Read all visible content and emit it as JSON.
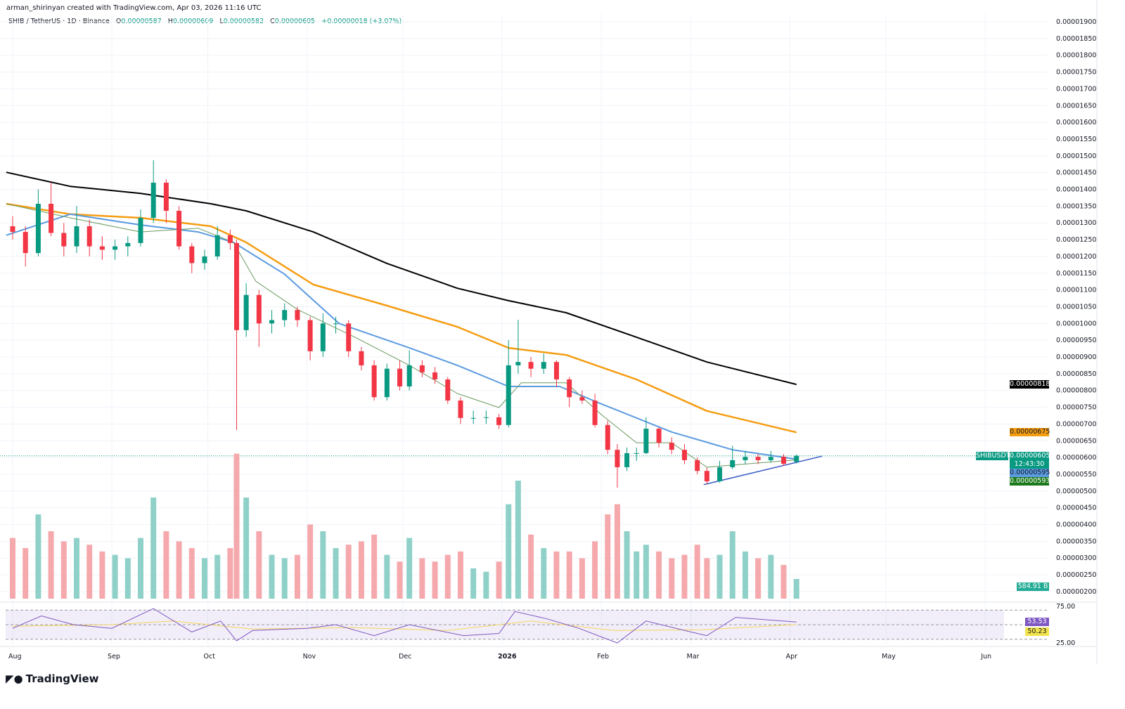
{
  "credit": "arman_shirinyan created with TradingView.com, Apr 03, 2026 11:16 UTC",
  "legend": {
    "symbol": "SHIB / TetherUS · 1D · Binance",
    "o_label": "O",
    "o": "0.00000587",
    "h_label": "H",
    "h": "0.00000609",
    "l_label": "L",
    "l": "0.00000582",
    "c_label": "C",
    "c": "0.00000605",
    "change": "+0.00000018 (+3.07%)"
  },
  "colors": {
    "up": "#089981",
    "down": "#f23645",
    "vol_up": "#8fd1c8",
    "vol_down": "#f5a9ad",
    "ma200": "#000000",
    "ma100": "#f59d12",
    "ma50": "#5b9be0",
    "ma20": "#6a9a5e",
    "trendline": "#3a5bc7",
    "rsi": "#7e57c2",
    "rsi_ma": "#f2d45c"
  },
  "tags": {
    "ma200": "0.00000818",
    "ma100": "0.00000675",
    "symbol": "SHIBUSDT",
    "last": "0.00000605",
    "countdown": "12:43:30",
    "ma50": "0.00000595",
    "ma20": "0.00000593",
    "volume": "584.91 B",
    "rsi": "53.53",
    "rsi_ma": "50.23"
  },
  "logo": "TradingView",
  "chart_data": {
    "type": "candlestick",
    "price_unit": "1e-6 USDT",
    "y_ticks": [
      "0.00001900",
      "0.00001850",
      "0.00001800",
      "0.00001750",
      "0.00001700",
      "0.00001650",
      "0.00001600",
      "0.00001550",
      "0.00001500",
      "0.00001450",
      "0.00001400",
      "0.00001350",
      "0.00001300",
      "0.00001250",
      "0.00001200",
      "0.00001150",
      "0.00001100",
      "0.00001050",
      "0.00001000",
      "0.00000950",
      "0.00000900",
      "0.00000850",
      "0.00000800",
      "0.00000750",
      "0.00000700",
      "0.00000650",
      "0.00000600",
      "0.00000550",
      "0.00000500",
      "0.00000450",
      "0.00000400",
      "0.00000350",
      "0.00000300",
      "0.00000250",
      "0.00000200"
    ],
    "ylim": [
      2.0,
      19.0
    ],
    "x_ticks": [
      {
        "label": "Aug",
        "date": "2025-08-01"
      },
      {
        "label": "Sep",
        "date": "2025-09-01"
      },
      {
        "label": "Oct",
        "date": "2025-10-01"
      },
      {
        "label": "Nov",
        "date": "2025-11-01"
      },
      {
        "label": "Dec",
        "date": "2025-12-01"
      },
      {
        "label": "2026",
        "date": "2026-01-01"
      },
      {
        "label": "Feb",
        "date": "2026-02-01"
      },
      {
        "label": "Mar",
        "date": "2026-03-01"
      },
      {
        "label": "Apr",
        "date": "2026-04-01"
      },
      {
        "label": "May",
        "date": "2026-05-01"
      },
      {
        "label": "Jun",
        "date": "2026-06-01"
      }
    ],
    "candles_columns": [
      "date",
      "open",
      "high",
      "low",
      "close",
      "volume_B"
    ],
    "candles": [
      [
        "2025-08-01",
        12.9,
        13.2,
        12.5,
        12.73,
        1800
      ],
      [
        "2025-08-05",
        12.73,
        12.9,
        11.7,
        12.1,
        1500
      ],
      [
        "2025-08-09",
        12.1,
        14.0,
        12.0,
        13.57,
        2500
      ],
      [
        "2025-08-13",
        13.57,
        14.2,
        12.6,
        12.7,
        2000
      ],
      [
        "2025-08-17",
        12.7,
        13.0,
        12.0,
        12.3,
        1700
      ],
      [
        "2025-08-21",
        12.3,
        13.5,
        12.1,
        12.9,
        1800
      ],
      [
        "2025-08-25",
        12.9,
        13.1,
        12.0,
        12.3,
        1600
      ],
      [
        "2025-08-29",
        12.3,
        12.6,
        11.9,
        12.2,
        1400
      ],
      [
        "2025-09-02",
        12.2,
        12.5,
        11.9,
        12.3,
        1300
      ],
      [
        "2025-09-06",
        12.3,
        12.6,
        12.0,
        12.4,
        1200
      ],
      [
        "2025-09-10",
        12.4,
        13.4,
        12.3,
        13.15,
        1800
      ],
      [
        "2025-09-14",
        13.15,
        14.87,
        13.0,
        14.2,
        3000
      ],
      [
        "2025-09-18",
        14.2,
        14.3,
        13.0,
        13.36,
        2000
      ],
      [
        "2025-09-22",
        13.36,
        13.5,
        12.2,
        12.3,
        1700
      ],
      [
        "2025-09-26",
        12.3,
        12.4,
        11.5,
        11.8,
        1500
      ],
      [
        "2025-09-30",
        11.8,
        12.2,
        11.6,
        12.0,
        1200
      ],
      [
        "2025-10-04",
        12.0,
        12.9,
        11.9,
        12.63,
        1300
      ],
      [
        "2025-10-08",
        12.63,
        12.8,
        12.2,
        12.4,
        1500
      ],
      [
        "2025-10-10",
        12.4,
        12.5,
        6.82,
        9.8,
        4300
      ],
      [
        "2025-10-13",
        9.8,
        11.2,
        9.6,
        10.85,
        3000
      ],
      [
        "2025-10-17",
        10.85,
        11.0,
        9.3,
        10.0,
        2000
      ],
      [
        "2025-10-21",
        10.0,
        10.4,
        9.7,
        10.1,
        1300
      ],
      [
        "2025-10-25",
        10.1,
        10.6,
        9.9,
        10.4,
        1200
      ],
      [
        "2025-10-29",
        10.4,
        10.5,
        9.9,
        10.1,
        1300
      ],
      [
        "2025-11-02",
        10.1,
        10.2,
        8.9,
        9.17,
        2200
      ],
      [
        "2025-11-06",
        9.17,
        10.3,
        9.0,
        10.0,
        2000
      ],
      [
        "2025-11-10",
        10.0,
        10.2,
        9.7,
        10.0,
        1500
      ],
      [
        "2025-11-14",
        10.0,
        10.1,
        9.0,
        9.17,
        1600
      ],
      [
        "2025-11-18",
        9.17,
        9.3,
        8.6,
        8.75,
        1700
      ],
      [
        "2025-11-22",
        8.75,
        8.9,
        7.7,
        7.8,
        1900
      ],
      [
        "2025-11-26",
        7.8,
        8.8,
        7.7,
        8.65,
        1300
      ],
      [
        "2025-11-30",
        8.65,
        8.9,
        8.0,
        8.12,
        1100
      ],
      [
        "2025-12-03",
        8.12,
        9.2,
        8.0,
        8.75,
        1800
      ],
      [
        "2025-12-07",
        8.75,
        8.9,
        8.4,
        8.54,
        1200
      ],
      [
        "2025-12-11",
        8.54,
        8.7,
        8.2,
        8.33,
        1100
      ],
      [
        "2025-12-15",
        8.33,
        8.4,
        7.6,
        7.7,
        1300
      ],
      [
        "2025-12-19",
        7.7,
        7.8,
        7.0,
        7.18,
        1400
      ],
      [
        "2025-12-23",
        7.18,
        7.4,
        7.0,
        7.18,
        900
      ],
      [
        "2025-12-27",
        7.18,
        7.4,
        7.0,
        7.2,
        800
      ],
      [
        "2025-12-31",
        7.2,
        7.3,
        6.85,
        6.97,
        1100
      ],
      [
        "2026-01-03",
        6.97,
        9.5,
        6.9,
        8.75,
        2800
      ],
      [
        "2026-01-06",
        8.75,
        10.11,
        8.5,
        8.85,
        3500
      ],
      [
        "2026-01-10",
        8.85,
        9.0,
        8.4,
        8.65,
        1900
      ],
      [
        "2026-01-14",
        8.65,
        9.1,
        8.5,
        8.85,
        1500
      ],
      [
        "2026-01-18",
        8.85,
        8.9,
        8.1,
        8.33,
        1400
      ],
      [
        "2026-01-22",
        8.33,
        8.4,
        7.5,
        7.8,
        1400
      ],
      [
        "2026-01-26",
        7.8,
        8.0,
        7.6,
        7.7,
        1200
      ],
      [
        "2026-01-30",
        7.7,
        7.9,
        6.9,
        6.97,
        1700
      ],
      [
        "2026-02-03",
        6.97,
        7.1,
        6.1,
        6.23,
        2500
      ],
      [
        "2026-02-06",
        6.23,
        6.4,
        5.1,
        5.71,
        2800
      ],
      [
        "2026-02-09",
        5.71,
        6.3,
        5.6,
        6.13,
        2000
      ],
      [
        "2026-02-12",
        6.13,
        6.3,
        5.9,
        6.13,
        1400
      ],
      [
        "2026-02-15",
        6.13,
        7.2,
        6.1,
        6.86,
        1600
      ],
      [
        "2026-02-19",
        6.86,
        6.9,
        6.3,
        6.44,
        1400
      ],
      [
        "2026-02-23",
        6.44,
        6.6,
        6.1,
        6.23,
        1200
      ],
      [
        "2026-02-27",
        6.23,
        6.4,
        5.8,
        5.92,
        1300
      ],
      [
        "2026-03-03",
        5.92,
        6.0,
        5.5,
        5.6,
        1600
      ],
      [
        "2026-03-06",
        5.6,
        5.7,
        5.2,
        5.29,
        1200
      ],
      [
        "2026-03-10",
        5.29,
        5.9,
        5.25,
        5.71,
        1300
      ],
      [
        "2026-03-14",
        5.71,
        6.35,
        5.65,
        5.92,
        2000
      ],
      [
        "2026-03-18",
        5.92,
        6.2,
        5.8,
        6.02,
        1400
      ],
      [
        "2026-03-22",
        6.02,
        6.1,
        5.8,
        5.92,
        1200
      ],
      [
        "2026-03-26",
        5.92,
        6.2,
        5.85,
        6.02,
        1300
      ],
      [
        "2026-03-30",
        6.02,
        6.1,
        5.75,
        5.81,
        1000
      ],
      [
        "2026-04-03",
        5.87,
        6.09,
        5.82,
        6.05,
        584.91
      ]
    ],
    "moving_averages": [
      {
        "key": "ma200",
        "points": [
          [
            "2025-07-30",
            14.51
          ],
          [
            "2025-08-19",
            14.09
          ],
          [
            "2025-09-10",
            13.88
          ],
          [
            "2025-10-02",
            13.57
          ],
          [
            "2025-10-13",
            13.36
          ],
          [
            "2025-11-03",
            12.73
          ],
          [
            "2025-11-26",
            11.79
          ],
          [
            "2025-12-18",
            11.05
          ],
          [
            "2026-01-03",
            10.68
          ],
          [
            "2026-01-21",
            10.32
          ],
          [
            "2026-02-12",
            9.59
          ],
          [
            "2026-03-06",
            8.85
          ],
          [
            "2026-04-03",
            8.18
          ]
        ]
      },
      {
        "key": "ma100",
        "points": [
          [
            "2025-07-30",
            13.57
          ],
          [
            "2025-08-19",
            13.26
          ],
          [
            "2025-09-10",
            13.15
          ],
          [
            "2025-10-02",
            12.9
          ],
          [
            "2025-10-13",
            12.42
          ],
          [
            "2025-11-03",
            11.16
          ],
          [
            "2025-11-26",
            10.53
          ],
          [
            "2025-12-18",
            9.9
          ],
          [
            "2026-01-03",
            9.27
          ],
          [
            "2026-01-21",
            9.06
          ],
          [
            "2026-02-12",
            8.33
          ],
          [
            "2026-03-06",
            7.39
          ],
          [
            "2026-04-03",
            6.75
          ]
        ]
      },
      {
        "key": "ma50",
        "points": [
          [
            "2025-07-30",
            12.63
          ],
          [
            "2025-08-19",
            13.26
          ],
          [
            "2025-09-10",
            12.94
          ],
          [
            "2025-09-28",
            12.73
          ],
          [
            "2025-10-09",
            12.42
          ],
          [
            "2025-10-25",
            11.47
          ],
          [
            "2025-11-11",
            10.0
          ],
          [
            "2025-12-03",
            9.27
          ],
          [
            "2025-12-18",
            8.75
          ],
          [
            "2026-01-03",
            8.12
          ],
          [
            "2026-01-19",
            8.12
          ],
          [
            "2026-02-01",
            7.6
          ],
          [
            "2026-02-23",
            6.76
          ],
          [
            "2026-03-14",
            6.23
          ],
          [
            "2026-04-03",
            5.95
          ]
        ]
      },
      {
        "key": "ma20",
        "points": [
          [
            "2025-07-30",
            13.57
          ],
          [
            "2025-08-19",
            13.15
          ],
          [
            "2025-09-10",
            12.73
          ],
          [
            "2025-09-28",
            12.84
          ],
          [
            "2025-10-09",
            12.42
          ],
          [
            "2025-10-16",
            11.26
          ],
          [
            "2025-10-29",
            10.42
          ],
          [
            "2025-11-16",
            9.59
          ],
          [
            "2025-12-03",
            8.75
          ],
          [
            "2025-12-18",
            7.91
          ],
          [
            "2025-12-31",
            7.49
          ],
          [
            "2026-01-07",
            8.23
          ],
          [
            "2026-01-21",
            8.23
          ],
          [
            "2026-02-01",
            7.28
          ],
          [
            "2026-02-12",
            6.44
          ],
          [
            "2026-02-23",
            6.44
          ],
          [
            "2026-03-06",
            5.71
          ],
          [
            "2026-04-03",
            5.93
          ]
        ]
      }
    ],
    "trendline": [
      [
        "2026-03-05",
        5.19
      ],
      [
        "2026-04-11",
        6.04
      ]
    ],
    "rsi": {
      "ylim": [
        25,
        75
      ],
      "ticks": [
        "75.00",
        "25.00"
      ],
      "bands": [
        70,
        50,
        30
      ],
      "values": [
        [
          "2025-08-01",
          45
        ],
        [
          "2025-08-10",
          62
        ],
        [
          "2025-08-20",
          50
        ],
        [
          "2025-09-01",
          45
        ],
        [
          "2025-09-14",
          72
        ],
        [
          "2025-09-26",
          40
        ],
        [
          "2025-10-05",
          55
        ],
        [
          "2025-10-10",
          28
        ],
        [
          "2025-10-15",
          42
        ],
        [
          "2025-11-01",
          45
        ],
        [
          "2025-11-10",
          50
        ],
        [
          "2025-11-22",
          35
        ],
        [
          "2025-12-03",
          50
        ],
        [
          "2025-12-20",
          35
        ],
        [
          "2025-12-31",
          38
        ],
        [
          "2026-01-05",
          68
        ],
        [
          "2026-01-15",
          58
        ],
        [
          "2026-01-25",
          45
        ],
        [
          "2026-02-06",
          25
        ],
        [
          "2026-02-15",
          55
        ],
        [
          "2026-03-01",
          40
        ],
        [
          "2026-03-06",
          35
        ],
        [
          "2026-03-15",
          60
        ],
        [
          "2026-04-03",
          53.53
        ]
      ],
      "ma": [
        [
          "2025-08-01",
          48
        ],
        [
          "2025-09-01",
          50
        ],
        [
          "2025-09-20",
          55
        ],
        [
          "2025-10-15",
          44
        ],
        [
          "2025-11-15",
          46
        ],
        [
          "2025-12-15",
          42
        ],
        [
          "2026-01-10",
          55
        ],
        [
          "2026-02-05",
          42
        ],
        [
          "2026-03-05",
          43
        ],
        [
          "2026-04-03",
          50.23
        ]
      ]
    }
  }
}
